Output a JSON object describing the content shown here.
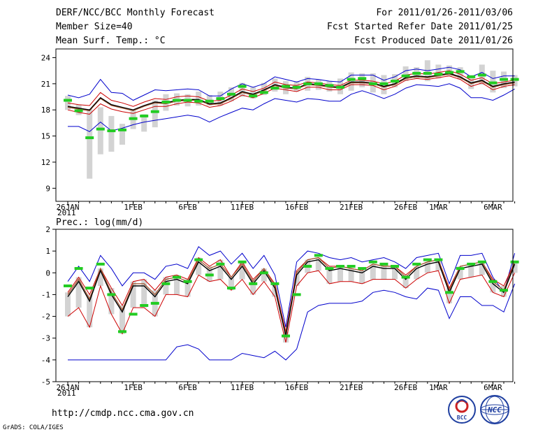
{
  "header": {
    "title": "DERF/NCC/BCC Monthly Forecast",
    "member_size": "Member Size=40",
    "variable": "Mean Surf. Temp.: °C",
    "period": "For 2011/01/26-2011/03/06",
    "started": "Fcst Started Refer Date 2011/01/25",
    "produced": "Fcst Produced Date 2011/01/26"
  },
  "footer": {
    "url": "http://cmdp.ncc.cma.gov.cn",
    "credit": "GrADS: COLA/IGES",
    "logo1_text": "BCC",
    "logo2_text": "NCC"
  },
  "colors": {
    "max_line": "#0000cc",
    "min_line": "#0000cc",
    "p90_line": "#cc0000",
    "p10_line": "#cc0000",
    "mean_line": "#000000",
    "median_line": "#a0522d",
    "box": "#d3d3d3",
    "marker": "#22cc22"
  },
  "chart_data": [
    {
      "type": "line",
      "title": "Mean Surf. Temp.: °C",
      "ylim": [
        7.5,
        25
      ],
      "yticks": [
        9,
        12,
        15,
        18,
        21,
        24
      ],
      "xlim": [
        0,
        40
      ],
      "xtick_labels": [
        {
          "x": 0,
          "label": "26JAN"
        },
        {
          "x": 6,
          "label": "1FEB"
        },
        {
          "x": 11,
          "label": "6FEB"
        },
        {
          "x": 16,
          "label": "11FEB"
        },
        {
          "x": 21,
          "label": "16FEB"
        },
        {
          "x": 26,
          "label": "21FEB"
        },
        {
          "x": 31,
          "label": "26FEB"
        },
        {
          "x": 34,
          "label": "1MAR"
        },
        {
          "x": 39,
          "label": "6MAR"
        }
      ],
      "year_label": "2011",
      "series": [
        {
          "name": "max",
          "values": [
            19.7,
            19.4,
            19.8,
            21.5,
            20.0,
            19.9,
            19.1,
            19.7,
            20.3,
            20.2,
            20.3,
            20.4,
            20.3,
            19.6,
            19.6,
            20.4,
            21.0,
            20.6,
            21.0,
            21.8,
            21.5,
            21.2,
            21.6,
            21.5,
            21.3,
            21.2,
            22.0,
            22.0,
            22.0,
            21.4,
            21.8,
            22.5,
            22.7,
            22.5,
            22.7,
            22.9,
            22.6,
            21.8,
            22.3,
            21.6,
            21.9,
            21.9
          ]
        },
        {
          "name": "p90",
          "values": [
            18.8,
            18.6,
            18.5,
            20.0,
            19.1,
            18.8,
            18.4,
            18.9,
            19.3,
            19.2,
            19.5,
            19.6,
            19.5,
            19.0,
            19.1,
            19.7,
            20.4,
            20.1,
            20.5,
            21.2,
            20.9,
            20.8,
            21.2,
            21.1,
            20.9,
            20.8,
            21.4,
            21.4,
            21.3,
            21.0,
            21.3,
            22.0,
            22.2,
            22.1,
            22.3,
            22.5,
            22.1,
            21.4,
            21.7,
            21.0,
            21.2,
            21.4
          ]
        },
        {
          "name": "mean",
          "values": [
            18.4,
            18.2,
            18.0,
            19.4,
            18.6,
            18.3,
            18.0,
            18.5,
            18.9,
            18.8,
            19.1,
            19.2,
            19.2,
            18.7,
            18.8,
            19.4,
            20.1,
            19.8,
            20.3,
            20.9,
            20.6,
            20.5,
            21.0,
            20.9,
            20.7,
            20.6,
            21.2,
            21.2,
            21.1,
            20.7,
            21.0,
            21.7,
            21.9,
            21.8,
            22.0,
            22.2,
            21.8,
            21.1,
            21.4,
            20.7,
            21.0,
            21.2
          ]
        },
        {
          "name": "median",
          "values": [
            18.3,
            18.1,
            17.9,
            19.3,
            18.5,
            18.2,
            17.9,
            18.4,
            18.8,
            18.7,
            19.0,
            19.1,
            19.1,
            18.6,
            18.7,
            19.3,
            20.0,
            19.7,
            20.2,
            20.8,
            20.5,
            20.4,
            20.9,
            20.8,
            20.6,
            20.5,
            21.1,
            21.1,
            21.0,
            20.6,
            20.9,
            21.6,
            21.8,
            21.7,
            21.9,
            22.1,
            21.7,
            21.0,
            21.3,
            20.6,
            20.9,
            21.1
          ]
        },
        {
          "name": "p10",
          "values": [
            18.0,
            17.7,
            17.5,
            18.7,
            18.1,
            17.8,
            17.6,
            18.0,
            18.4,
            18.4,
            18.7,
            18.9,
            18.8,
            18.3,
            18.5,
            19.0,
            19.7,
            19.4,
            19.9,
            20.5,
            20.3,
            20.1,
            20.6,
            20.6,
            20.3,
            20.3,
            20.9,
            20.9,
            20.8,
            20.3,
            20.7,
            21.4,
            21.6,
            21.5,
            21.7,
            21.9,
            21.5,
            20.7,
            21.1,
            20.3,
            20.7,
            20.9
          ]
        },
        {
          "name": "min",
          "values": [
            16.1,
            16.1,
            15.5,
            16.6,
            15.6,
            15.9,
            16.3,
            16.6,
            16.8,
            17.0,
            17.2,
            17.4,
            17.2,
            16.6,
            17.2,
            17.7,
            18.2,
            18.0,
            18.7,
            19.3,
            19.1,
            18.9,
            19.3,
            19.2,
            19.0,
            19.0,
            19.8,
            20.2,
            19.8,
            19.3,
            19.8,
            20.5,
            20.9,
            20.8,
            20.7,
            21.0,
            20.5,
            19.4,
            19.4,
            19.1,
            19.7,
            20.4
          ]
        }
      ],
      "observed": [
        19.1,
        17.9,
        14.8,
        15.8,
        15.6,
        15.7,
        17.0,
        17.3,
        17.8,
        18.9,
        19.1,
        19.1,
        19.0,
        19.0,
        19.3,
        19.8,
        20.7,
        19.6,
        20.0,
        20.5,
        20.7,
        20.6,
        21.0,
        21.0,
        20.8,
        20.6,
        21.5,
        21.6,
        21.0,
        21.0,
        21.3,
        21.9,
        22.2,
        22.2,
        22.1,
        22.3,
        22.4,
        21.8,
        22.0,
        21.1,
        21.5,
        21.5
      ],
      "box_ranges": [
        [
          18.0,
          19.6
        ],
        [
          17.4,
          18.6
        ],
        [
          10.1,
          18.1
        ],
        [
          12.9,
          18.3
        ],
        [
          13.2,
          17.3
        ],
        [
          14.0,
          16.4
        ],
        [
          15.8,
          17.9
        ],
        [
          15.5,
          17.5
        ],
        [
          16.0,
          19.1
        ],
        [
          17.9,
          19.8
        ],
        [
          18.5,
          19.9
        ],
        [
          18.4,
          19.8
        ],
        [
          18.5,
          20.1
        ],
        [
          18.5,
          19.7
        ],
        [
          18.5,
          20.1
        ],
        [
          19.0,
          20.6
        ],
        [
          19.5,
          21.1
        ],
        [
          19.3,
          20.6
        ],
        [
          19.7,
          21.1
        ],
        [
          20.1,
          21.6
        ],
        [
          19.8,
          21.3
        ],
        [
          20.1,
          21.3
        ],
        [
          20.2,
          21.8
        ],
        [
          20.3,
          21.5
        ],
        [
          20.1,
          21.3
        ],
        [
          19.8,
          21.6
        ],
        [
          20.2,
          22.3
        ],
        [
          20.6,
          22.2
        ],
        [
          20.0,
          22.2
        ],
        [
          19.8,
          22.0
        ],
        [
          20.6,
          22.1
        ],
        [
          21.3,
          23.0
        ],
        [
          21.6,
          22.9
        ],
        [
          21.3,
          23.7
        ],
        [
          21.6,
          23.2
        ],
        [
          21.9,
          23.1
        ],
        [
          21.5,
          22.9
        ],
        [
          20.4,
          22.0
        ],
        [
          20.9,
          23.2
        ],
        [
          20.0,
          22.5
        ],
        [
          20.5,
          22.4
        ],
        [
          20.7,
          22.0
        ]
      ]
    },
    {
      "type": "line",
      "title": "Prec.: log(mm/d)",
      "ylim": [
        -5,
        2
      ],
      "yticks": [
        -5,
        -4,
        -3,
        -2,
        -1,
        0,
        1,
        2
      ],
      "xlim": [
        0,
        40
      ],
      "xtick_labels": [
        {
          "x": 0,
          "label": "26JAN"
        },
        {
          "x": 6,
          "label": "1FEB"
        },
        {
          "x": 11,
          "label": "6FEB"
        },
        {
          "x": 16,
          "label": "11FEB"
        },
        {
          "x": 21,
          "label": "16FEB"
        },
        {
          "x": 26,
          "label": "21FEB"
        },
        {
          "x": 31,
          "label": "26FEB"
        },
        {
          "x": 34,
          "label": "1MAR"
        },
        {
          "x": 39,
          "label": "6MAR"
        }
      ],
      "year_label": "2011",
      "series": [
        {
          "name": "max",
          "values": [
            -0.4,
            0.3,
            -0.4,
            0.8,
            0.2,
            -0.6,
            0.0,
            0.0,
            -0.3,
            0.3,
            0.4,
            0.2,
            1.2,
            0.8,
            1.0,
            0.4,
            0.9,
            0.2,
            0.8,
            -0.1,
            -2.5,
            0.5,
            1.0,
            0.9,
            0.7,
            0.6,
            0.7,
            0.5,
            0.6,
            0.7,
            0.5,
            0.2,
            0.7,
            0.8,
            0.9,
            -0.5,
            0.8,
            0.8,
            0.9,
            -0.2,
            -0.9,
            0.9
          ]
        },
        {
          "name": "p90",
          "values": [
            -0.9,
            -0.2,
            -1.0,
            0.2,
            -0.7,
            -1.5,
            -0.4,
            -0.3,
            -0.8,
            -0.2,
            -0.1,
            -0.3,
            0.7,
            0.3,
            0.6,
            -0.2,
            0.5,
            -0.3,
            0.2,
            -0.5,
            -2.7,
            0.1,
            0.6,
            0.7,
            0.3,
            0.3,
            0.2,
            0.1,
            0.4,
            0.3,
            0.3,
            -0.1,
            0.3,
            0.5,
            0.6,
            -0.7,
            0.3,
            0.4,
            0.5,
            -0.3,
            -0.6,
            0.5
          ]
        },
        {
          "name": "mean",
          "values": [
            -1.1,
            -0.4,
            -1.3,
            0.1,
            -1.0,
            -1.8,
            -0.6,
            -0.6,
            -1.1,
            -0.4,
            -0.3,
            -0.5,
            0.5,
            0.1,
            0.3,
            -0.3,
            0.3,
            -0.5,
            0.1,
            -0.7,
            -2.9,
            -0.1,
            0.5,
            0.6,
            0.1,
            0.2,
            0.1,
            0.0,
            0.3,
            0.2,
            0.2,
            -0.3,
            0.2,
            0.4,
            0.5,
            -0.9,
            0.2,
            0.3,
            0.4,
            -0.5,
            -0.9,
            0.4
          ]
        },
        {
          "name": "median",
          "values": [
            -1.0,
            -0.3,
            -1.2,
            0.2,
            -0.9,
            -1.7,
            -0.5,
            -0.5,
            -1.0,
            -0.3,
            -0.2,
            -0.4,
            0.6,
            0.2,
            0.4,
            -0.2,
            0.4,
            -0.4,
            0.2,
            -0.6,
            -2.8,
            0.0,
            0.6,
            0.7,
            0.2,
            0.3,
            0.2,
            0.1,
            0.4,
            0.3,
            0.3,
            -0.2,
            0.3,
            0.5,
            0.6,
            -0.8,
            0.3,
            0.4,
            0.5,
            -0.4,
            -0.8,
            0.5
          ]
        },
        {
          "name": "p10",
          "values": [
            -2.0,
            -1.6,
            -2.5,
            -0.6,
            -1.9,
            -2.8,
            -1.6,
            -1.6,
            -2.0,
            -1.0,
            -1.0,
            -1.1,
            -0.1,
            -0.4,
            -0.3,
            -0.8,
            -0.3,
            -1.0,
            -0.4,
            -1.1,
            -3.2,
            -0.6,
            0.0,
            0.1,
            -0.5,
            -0.4,
            -0.4,
            -0.5,
            -0.3,
            -0.3,
            -0.3,
            -0.7,
            -0.3,
            0.0,
            0.1,
            -1.4,
            -0.3,
            -0.2,
            -0.1,
            -0.9,
            -1.1,
            0.0
          ]
        },
        {
          "name": "min",
          "values": [
            -4.0,
            -4.0,
            -4.0,
            -4.0,
            -4.0,
            -4.0,
            -4.0,
            -4.0,
            -4.0,
            -4.0,
            -3.4,
            -3.3,
            -3.5,
            -4.0,
            -4.0,
            -4.0,
            -3.7,
            -3.8,
            -3.9,
            -3.6,
            -4.0,
            -3.5,
            -1.8,
            -1.5,
            -1.4,
            -1.4,
            -1.4,
            -1.3,
            -0.9,
            -0.8,
            -0.9,
            -1.1,
            -1.2,
            -0.7,
            -0.8,
            -2.1,
            -1.1,
            -1.1,
            -1.5,
            -1.5,
            -1.8,
            -0.5
          ]
        }
      ],
      "observed": [
        -0.6,
        0.2,
        -0.7,
        0.4,
        -1.0,
        -2.7,
        -1.9,
        -1.5,
        -1.4,
        -0.5,
        -0.2,
        -0.4,
        0.6,
        -0.1,
        0.4,
        -0.7,
        0.5,
        -0.5,
        0.0,
        -0.5,
        -2.9,
        -1.0,
        0.3,
        0.8,
        0.2,
        0.3,
        0.3,
        0.2,
        0.5,
        0.4,
        0.3,
        -0.2,
        0.4,
        0.6,
        0.6,
        -0.9,
        0.2,
        0.4,
        0.5,
        -0.4,
        -0.8,
        0.5
      ]
    }
  ]
}
